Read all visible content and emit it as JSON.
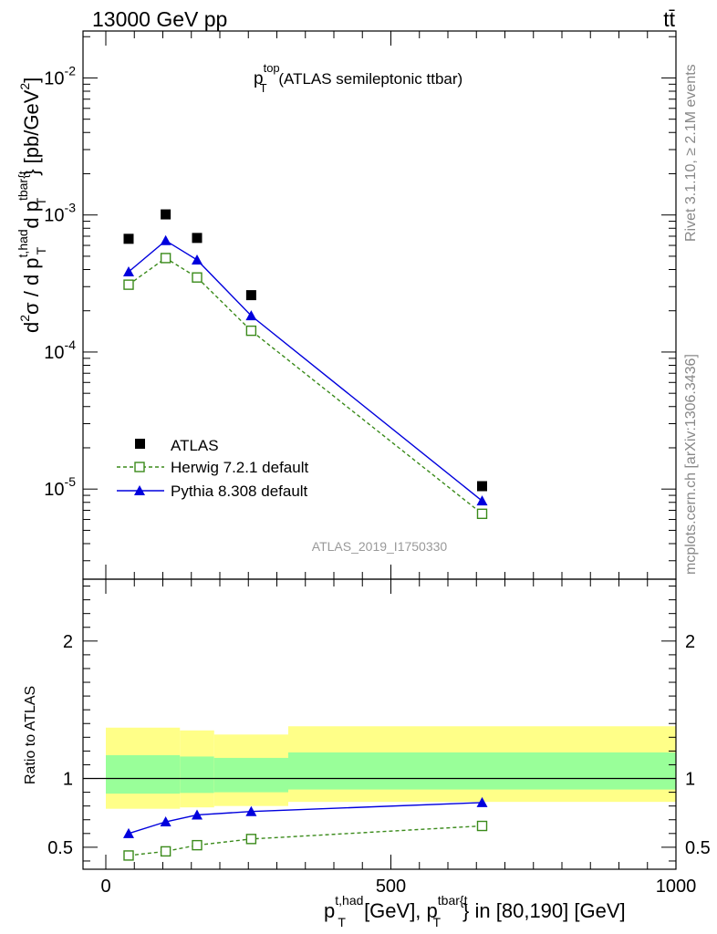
{
  "header": {
    "energy_label": "13000 GeV pp",
    "process_label": "tt̄",
    "analysis_id": "ATLAS_2019_I1750330"
  },
  "side_labels": {
    "rivet": "Rivet 3.1.10, ≥ 2.1M events",
    "mcplots": "mcplots.cern.ch [arXiv:1306.3436]"
  },
  "chart_data": [
    {
      "type": "scatter",
      "panel": "main",
      "title": {
        "base": "p",
        "sup": "top",
        "sub": "T",
        "rest": " (ATLAS semileptonic ttbar)"
      },
      "ylabel": {
        "d1": "d",
        "d1_sup": "2",
        "sigma": "σ / d p",
        "p1_sup": "t,had",
        "p1_sub": "T",
        "mid": " d p",
        "p2_sup": "tbar{t",
        "p2_sub": "T",
        "tail": "} [pb/GeV",
        "tail_sup": "2",
        "close": "]"
      },
      "yscale": "log",
      "ylim": [
        2.2e-06,
        0.022
      ],
      "xlim": [
        -40,
        1000
      ],
      "y_ticks": [
        {
          "exp": "-5"
        },
        {
          "exp": "-4"
        },
        {
          "exp": "-3"
        },
        {
          "exp": "-2"
        }
      ],
      "legend": {
        "atlas": "ATLAS",
        "herwig": "Herwig 7.2.1 default",
        "pythia": "Pythia 8.308 default"
      },
      "x": [
        40,
        105,
        160,
        255,
        660
      ],
      "series": [
        {
          "name": "ATLAS",
          "values": [
            0.00067,
            0.00101,
            0.00068,
            0.00026,
            1.05e-05
          ],
          "color": "#000000"
        },
        {
          "name": "Herwig 7.2.1 default",
          "values": [
            0.00031,
            0.000485,
            0.00035,
            0.000143,
            6.6e-06
          ],
          "color": "#3a8a1a"
        },
        {
          "name": "Pythia 8.308 default",
          "values": [
            0.000385,
            0.00065,
            0.00047,
            0.000184,
            8.2e-06
          ],
          "color": "#0000dd"
        }
      ]
    },
    {
      "type": "line",
      "panel": "ratio",
      "ylabel": "Ratio to ATLAS",
      "xlabel": {
        "p1": "p",
        "p1_sup": "t,had",
        "p1_sub": "T",
        "mid": " [GeV], p",
        "p2_sup": "tbar{t",
        "p2_sub": "T",
        "tail": "} in [80,190] [GeV]"
      },
      "ylim": [
        0.34,
        2.45
      ],
      "xlim": [
        -40,
        1000
      ],
      "x_tick_labels": [
        "0",
        "500",
        "1000"
      ],
      "x_ticks": [
        0,
        500,
        1000
      ],
      "y_tick_labels": [
        "0.5",
        "1",
        "2"
      ],
      "y_ticks": [
        0.5,
        1,
        2
      ],
      "bands": {
        "edges": [
          0,
          130,
          190,
          320,
          1000
        ],
        "outer_lo": [
          0.78,
          0.79,
          0.8,
          0.83,
          0.74
        ],
        "outer_hi": [
          1.37,
          1.35,
          1.32,
          1.38,
          1.39
        ],
        "inner_lo": [
          0.89,
          0.895,
          0.9,
          0.92,
          0.88
        ],
        "inner_hi": [
          1.17,
          1.16,
          1.15,
          1.19,
          1.19
        ],
        "outer_color": "#ffff88",
        "inner_color": "#99ff99"
      },
      "x": [
        40,
        105,
        160,
        255,
        660
      ],
      "series": [
        {
          "name": "Herwig 7.2.1 default",
          "values": [
            0.44,
            0.47,
            0.515,
            0.56,
            0.655
          ],
          "color": "#3a8a1a"
        },
        {
          "name": "Pythia 8.308 default",
          "values": [
            0.6,
            0.685,
            0.735,
            0.76,
            0.825
          ],
          "color": "#0000dd"
        }
      ]
    }
  ]
}
